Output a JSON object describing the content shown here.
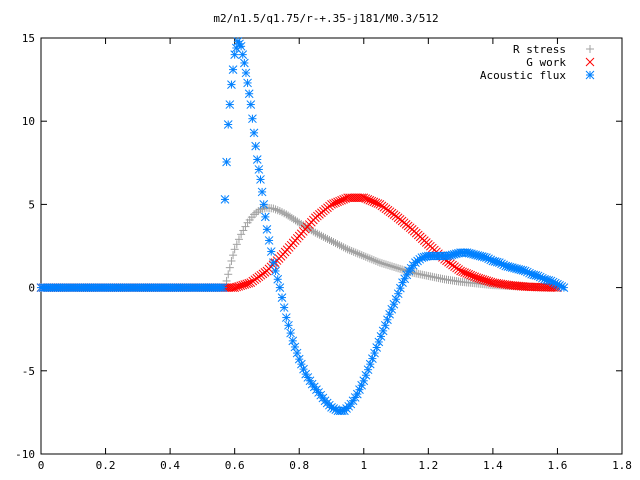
{
  "chart_data": {
    "type": "scatter",
    "title": "m2/n1.5/q1.75/r-+.35-j181/M0.3/512",
    "xlabel": "",
    "ylabel": "",
    "xlim": [
      0,
      1.8
    ],
    "ylim": [
      -10,
      15
    ],
    "xticks": [
      0,
      0.2,
      0.4,
      0.6,
      0.8,
      1,
      1.2,
      1.4,
      1.6,
      1.8
    ],
    "yticks": [
      -10,
      -5,
      0,
      5,
      10,
      15
    ],
    "xtick_labels": [
      "0",
      "0.2",
      "0.4",
      "0.6",
      "0.8",
      "1",
      "1.2",
      "1.4",
      "1.6",
      "1.8"
    ],
    "ytick_labels": [
      "-10",
      "-5",
      "0",
      "5",
      "10",
      "15"
    ],
    "grid": false,
    "legend_position": "top-right",
    "series": [
      {
        "name": "R stress",
        "marker": "plus",
        "color": "#a0a0a0",
        "x": [
          0.57,
          0.58,
          0.59,
          0.6,
          0.62,
          0.64,
          0.66,
          0.68,
          0.7,
          0.72,
          0.74,
          0.76,
          0.8,
          0.85,
          0.9,
          0.95,
          1.0,
          1.05,
          1.1,
          1.15,
          1.2,
          1.25,
          1.3,
          1.35,
          1.4,
          1.45,
          1.5,
          1.55,
          1.6
        ],
        "y": [
          0.0,
          0.8,
          1.6,
          2.3,
          3.2,
          3.9,
          4.4,
          4.7,
          4.8,
          4.75,
          4.6,
          4.4,
          3.9,
          3.3,
          2.8,
          2.3,
          1.9,
          1.5,
          1.2,
          0.9,
          0.7,
          0.5,
          0.35,
          0.25,
          0.15,
          0.1,
          0.06,
          0.03,
          0.0
        ]
      },
      {
        "name": "G work",
        "marker": "cross",
        "color": "#ff0000",
        "x": [
          0.57,
          0.6,
          0.65,
          0.7,
          0.75,
          0.8,
          0.85,
          0.9,
          0.95,
          1.0,
          1.05,
          1.1,
          1.15,
          1.2,
          1.25,
          1.3,
          1.35,
          1.4,
          1.45,
          1.5,
          1.55,
          1.6
        ],
        "y": [
          0.0,
          0.0,
          0.3,
          1.0,
          2.0,
          3.1,
          4.2,
          5.0,
          5.4,
          5.4,
          5.0,
          4.3,
          3.5,
          2.6,
          1.7,
          1.0,
          0.6,
          0.3,
          0.15,
          0.06,
          0.02,
          0.0
        ]
      },
      {
        "name": "Acoustic flux",
        "marker": "star",
        "color": "#0080ff",
        "x": [
          0.57,
          0.58,
          0.59,
          0.6,
          0.61,
          0.62,
          0.63,
          0.64,
          0.65,
          0.66,
          0.67,
          0.68,
          0.69,
          0.7,
          0.72,
          0.74,
          0.76,
          0.78,
          0.8,
          0.82,
          0.84,
          0.86,
          0.88,
          0.9,
          0.92,
          0.94,
          0.96,
          0.98,
          1.0,
          1.02,
          1.04,
          1.06,
          1.08,
          1.1,
          1.12,
          1.14,
          1.16,
          1.18,
          1.2,
          1.22,
          1.24,
          1.26,
          1.28,
          1.3,
          1.32,
          1.34,
          1.36,
          1.38,
          1.4,
          1.42,
          1.44,
          1.46,
          1.48,
          1.5,
          1.52,
          1.54,
          1.56,
          1.58,
          1.6,
          1.62
        ],
        "y": [
          5.3,
          9.8,
          12.2,
          14.0,
          14.8,
          14.5,
          13.5,
          12.3,
          11.0,
          9.3,
          7.7,
          6.5,
          5.0,
          3.5,
          1.5,
          0.0,
          -1.8,
          -3.2,
          -4.3,
          -5.2,
          -5.8,
          -6.3,
          -6.8,
          -7.2,
          -7.4,
          -7.4,
          -7.0,
          -6.4,
          -5.6,
          -4.6,
          -3.6,
          -2.6,
          -1.6,
          -0.7,
          0.3,
          1.0,
          1.5,
          1.8,
          1.9,
          1.9,
          1.9,
          1.9,
          2.0,
          2.1,
          2.1,
          2.0,
          1.9,
          1.8,
          1.6,
          1.5,
          1.3,
          1.2,
          1.1,
          1.0,
          0.8,
          0.7,
          0.5,
          0.4,
          0.2,
          0.0
        ]
      }
    ]
  }
}
